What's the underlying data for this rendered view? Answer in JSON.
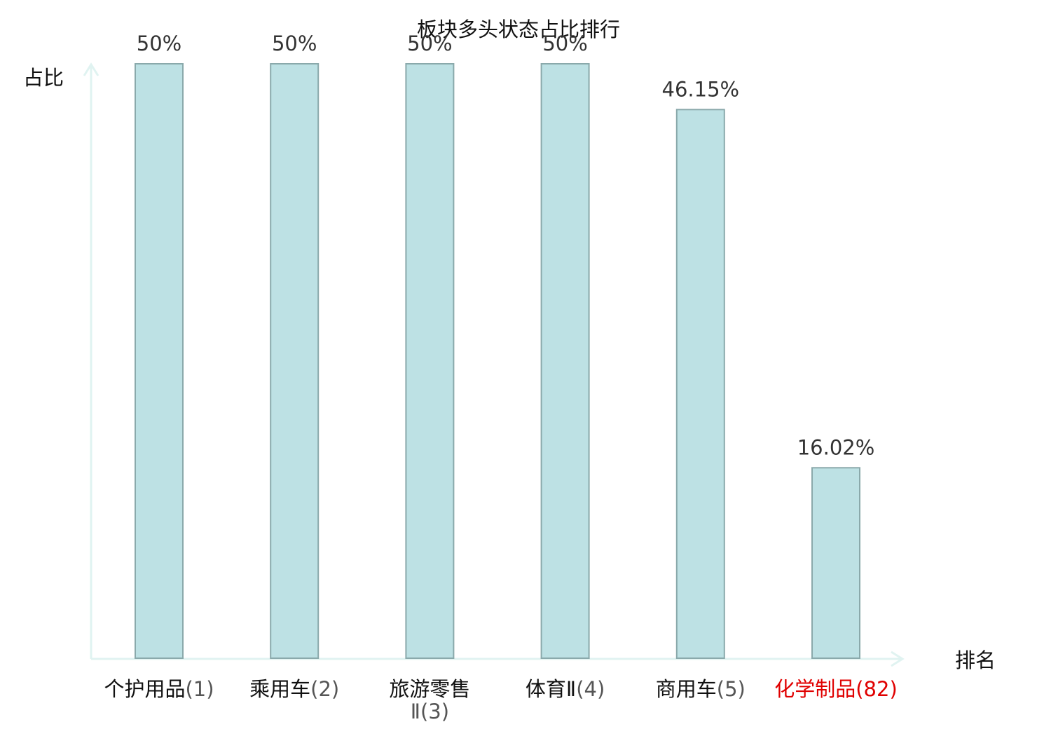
{
  "chart_data": {
    "type": "bar",
    "title": "板块多头状态占比排行",
    "xlabel": "排名",
    "ylabel": "占比",
    "categories": [
      {
        "name": "个护用品",
        "rank": "(1)"
      },
      {
        "name": "乘用车",
        "rank": "(2)"
      },
      {
        "name": "旅游零售Ⅱ",
        "rank": "(3)"
      },
      {
        "name": "体育Ⅱ",
        "rank": "(4)"
      },
      {
        "name": "商用车",
        "rank": "(5)"
      },
      {
        "name": "化学制品",
        "rank": "(82)",
        "highlight": true
      }
    ],
    "values": [
      50,
      50,
      50,
      50,
      46.15,
      16.02
    ],
    "value_labels": [
      "50%",
      "50%",
      "50%",
      "50%",
      "46.15%",
      "16.02%"
    ],
    "ylim": [
      0,
      50
    ],
    "grid": false,
    "legend": "none"
  },
  "colors": {
    "bar_fill": "#bde1e4",
    "bar_stroke": "#8aa9ab",
    "axis": "#e0f3f1",
    "label_text": "#333333",
    "tick_text": "#111111",
    "rank_text": "#555555",
    "highlight": "#e00000"
  }
}
